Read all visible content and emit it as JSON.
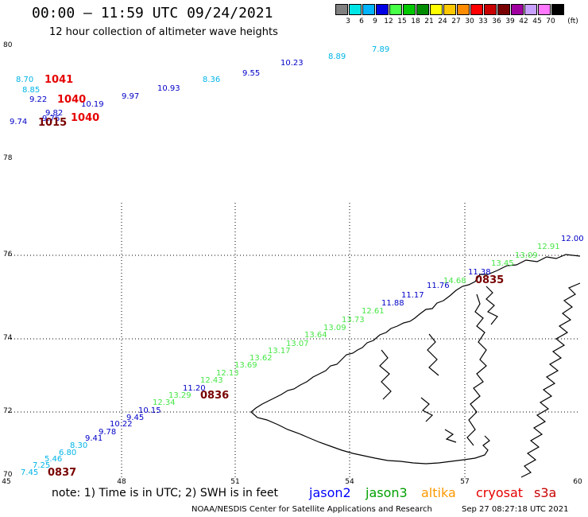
{
  "header": {
    "title": "00:00 – 11:59 UTC 09/24/2021",
    "subtitle": "12 hour collection of altimeter wave heights"
  },
  "legend": {
    "unit": "(ft)",
    "bins": [
      {
        "label": "3",
        "color": "#808080"
      },
      {
        "label": "6",
        "color": "#00e6e6"
      },
      {
        "label": "9",
        "color": "#00b4ff"
      },
      {
        "label": "12",
        "color": "#0000e6"
      },
      {
        "label": "15",
        "color": "#46ff46"
      },
      {
        "label": "18",
        "color": "#00c800"
      },
      {
        "label": "21",
        "color": "#008c00"
      },
      {
        "label": "24",
        "color": "#ffff00"
      },
      {
        "label": "27",
        "color": "#ffc800"
      },
      {
        "label": "30",
        "color": "#ff8c00"
      },
      {
        "label": "33",
        "color": "#ff0000"
      },
      {
        "label": "36",
        "color": "#c80000"
      },
      {
        "label": "39",
        "color": "#780000"
      },
      {
        "label": "42",
        "color": "#a000a0"
      },
      {
        "label": "45",
        "color": "#c8a0ff"
      },
      {
        "label": "70",
        "color": "#ff78ff"
      },
      {
        "label": "",
        "color": "#000000"
      }
    ]
  },
  "axes": {
    "y_ticks": [
      "80",
      "78",
      "76",
      "74",
      "72",
      "70"
    ],
    "x_ticks": [
      "45",
      "48",
      "51",
      "54",
      "57",
      "60"
    ]
  },
  "observations": [
    {
      "value": "8.70",
      "color": "#00b4e6"
    },
    {
      "value": "8.85",
      "color": "#00b4e6"
    },
    {
      "value": "9.22",
      "color": "#0000c8"
    },
    {
      "value": "9.74",
      "color": "#0000c8"
    },
    {
      "value": "9.82",
      "color": "#0000c8"
    },
    {
      "value": "9.76",
      "color": "#0000c8"
    },
    {
      "value": "10.19",
      "color": "#0000c8"
    },
    {
      "value": "9.97",
      "color": "#0000c8"
    },
    {
      "value": "10.93",
      "color": "#0000c8"
    },
    {
      "value": "8.36",
      "color": "#00b4e6"
    },
    {
      "value": "9.55",
      "color": "#0000c8"
    },
    {
      "value": "10.23",
      "color": "#0000c8"
    },
    {
      "value": "8.89",
      "color": "#00b4e6"
    },
    {
      "value": "7.89",
      "color": "#00b4e6"
    },
    {
      "value": "12.00",
      "color": "#0000c8"
    },
    {
      "value": "12.91",
      "color": "#46e646"
    },
    {
      "value": "13.09",
      "color": "#46e646"
    },
    {
      "value": "13.45",
      "color": "#46e646"
    },
    {
      "value": "11.38",
      "color": "#0000c8"
    },
    {
      "value": "14.68",
      "color": "#46e646"
    },
    {
      "value": "11.76",
      "color": "#0000c8"
    },
    {
      "value": "11.17",
      "color": "#0000c8"
    },
    {
      "value": "11.88",
      "color": "#0000c8"
    },
    {
      "value": "12.61",
      "color": "#46e646"
    },
    {
      "value": "13.73",
      "color": "#46e646"
    },
    {
      "value": "13.09",
      "color": "#46e646"
    },
    {
      "value": "13.64",
      "color": "#46e646"
    },
    {
      "value": "13.07",
      "color": "#46e646"
    },
    {
      "value": "13.17",
      "color": "#46e646"
    },
    {
      "value": "13.62",
      "color": "#46e646"
    },
    {
      "value": "13.69",
      "color": "#46e646"
    },
    {
      "value": "12.13",
      "color": "#46e646"
    },
    {
      "value": "12.43",
      "color": "#46e646"
    },
    {
      "value": "11.20",
      "color": "#0000c8"
    },
    {
      "value": "13.29",
      "color": "#46e646"
    },
    {
      "value": "12.34",
      "color": "#46e646"
    },
    {
      "value": "10.15",
      "color": "#0000c8"
    },
    {
      "value": "9.45",
      "color": "#0000c8"
    },
    {
      "value": "10.22",
      "color": "#0000c8"
    },
    {
      "value": "9.78",
      "color": "#0000c8"
    },
    {
      "value": "9.41",
      "color": "#0000c8"
    },
    {
      "value": "8.30",
      "color": "#00b4e6"
    },
    {
      "value": "6.80",
      "color": "#00b4e6"
    },
    {
      "value": "5.46",
      "color": "#00b4e6"
    },
    {
      "value": "7.25",
      "color": "#00b4e6"
    },
    {
      "value": "7.45",
      "color": "#00b4e6"
    }
  ],
  "time_labels": [
    {
      "value": "1041",
      "color": "#e60000"
    },
    {
      "value": "1040",
      "color": "#e60000"
    },
    {
      "value": "1040",
      "color": "#e60000"
    },
    {
      "value": "1015",
      "color": "#780000"
    },
    {
      "value": "0835",
      "color": "#780000"
    },
    {
      "value": "0836",
      "color": "#780000"
    },
    {
      "value": "0837",
      "color": "#780000"
    }
  ],
  "footer": {
    "note": "note:  1) Time is in UTC;  2) SWH is in feet",
    "satellites": [
      {
        "name": "jason2",
        "color": "#0000ff"
      },
      {
        "name": "jason3",
        "color": "#00a000"
      },
      {
        "name": "altika",
        "color": "#ff9900"
      },
      {
        "name": "cryosat",
        "color": "#e60000"
      },
      {
        "name": "s3a",
        "color": "#c80000"
      }
    ],
    "credit": "NOAA/NESDIS Center for Satellite Applications and Research",
    "timestamp": "Sep 27 08:27:18 UTC 2021"
  }
}
